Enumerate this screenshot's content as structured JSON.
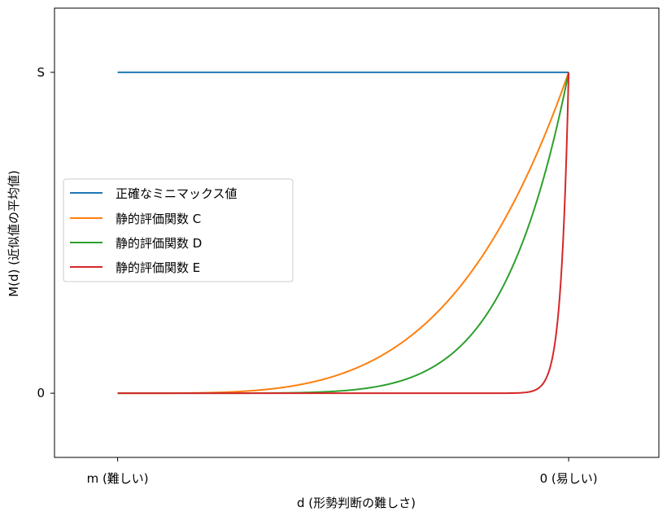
{
  "chart_data": {
    "type": "line",
    "title": "",
    "xlabel": "d (形勢判断の難しさ)",
    "ylabel": "M(d) (近似値の平均値)",
    "x_ticks": [
      {
        "value": 0,
        "label": "m (難しい)"
      },
      {
        "value": 1,
        "label": "0 (易しい)"
      }
    ],
    "y_ticks": [
      {
        "value": 0,
        "label": "0"
      },
      {
        "value": 1,
        "label": "S"
      }
    ],
    "xlim": [
      -0.14,
      1.2
    ],
    "ylim": [
      -0.2,
      1.2
    ],
    "grid": false,
    "legend_position": "center-left",
    "series": [
      {
        "name": "正確なミニマックス値",
        "color": "#1f77b4",
        "x": [
          0,
          0.25,
          0.5,
          0.75,
          1
        ],
        "y": [
          1,
          1,
          1,
          1,
          1
        ]
      },
      {
        "name": "静的評価関数 C",
        "color": "#ff7f0e",
        "x": [
          0,
          0.1,
          0.2,
          0.3,
          0.4,
          0.5,
          0.6,
          0.7,
          0.8,
          0.9,
          1
        ],
        "y": [
          0,
          0.0001,
          0.0016,
          0.0081,
          0.0256,
          0.0625,
          0.1296,
          0.2401,
          0.4096,
          0.6561,
          1
        ]
      },
      {
        "name": "静的評価関数 D",
        "color": "#2ca02c",
        "x": [
          0,
          0.1,
          0.2,
          0.3,
          0.4,
          0.5,
          0.6,
          0.7,
          0.8,
          0.9,
          1
        ],
        "y": [
          0,
          0,
          0,
          0.0002,
          0.0017,
          0.0078,
          0.028,
          0.0824,
          0.2097,
          0.4783,
          1
        ]
      },
      {
        "name": "静的評価関数 E",
        "color": "#d62728",
        "x": [
          0,
          0.9,
          0.95,
          0.96,
          0.97,
          0.98,
          0.99,
          1
        ],
        "y": [
          0,
          0,
          0.0036,
          0.0132,
          0.0476,
          0.1667,
          0.5,
          1
        ]
      }
    ]
  }
}
